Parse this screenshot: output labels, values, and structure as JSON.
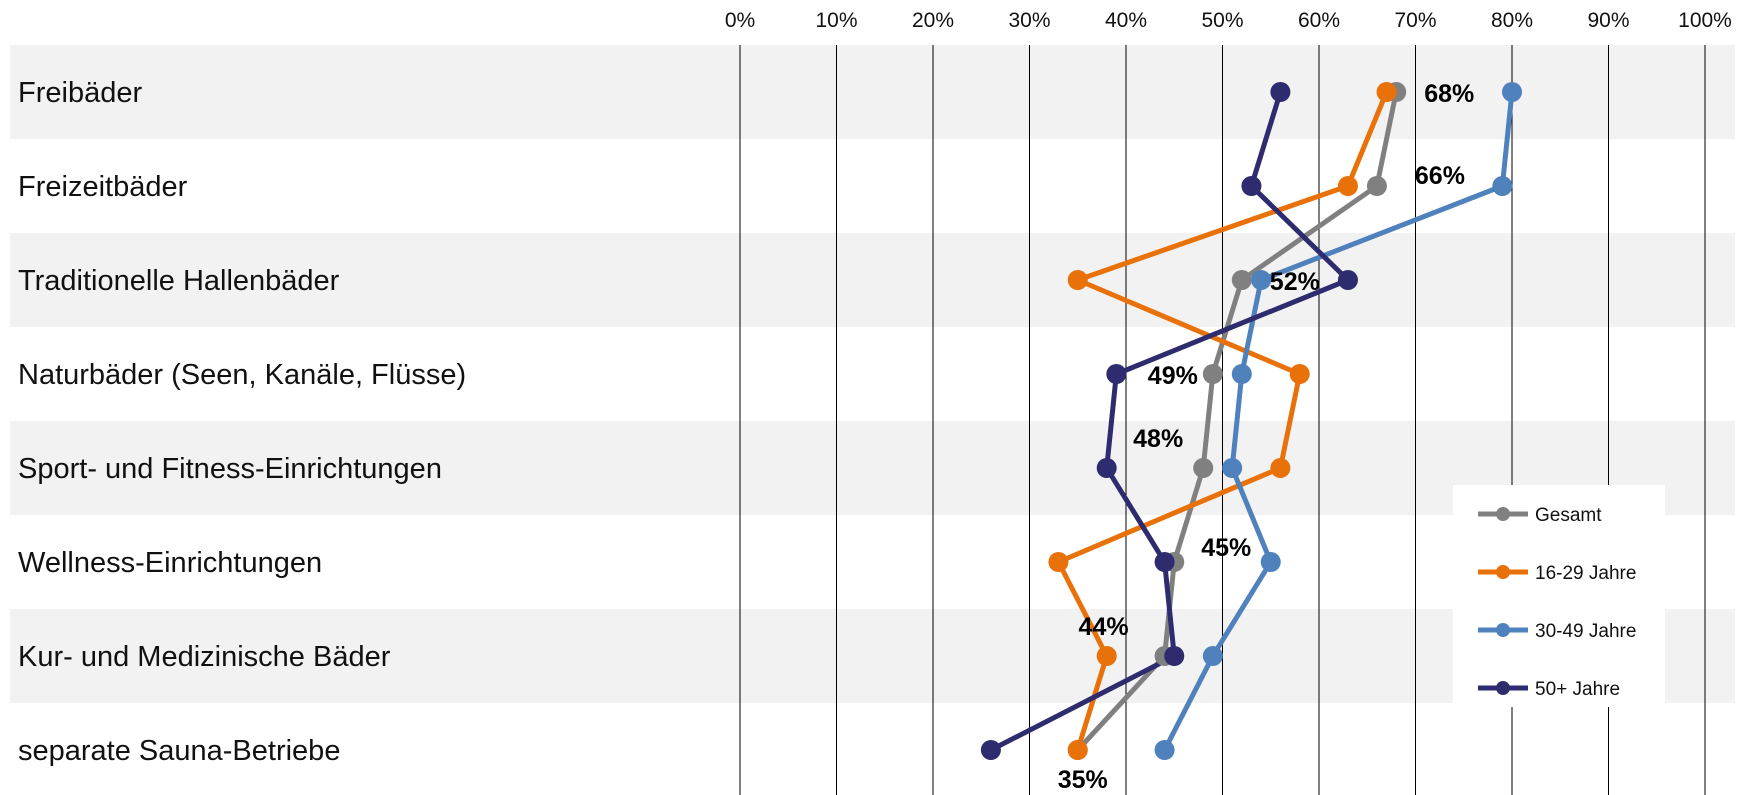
{
  "chart_data": {
    "type": "line",
    "orientation": "horizontal",
    "categories": [
      "Freibäder",
      "Freizeitbäder",
      "Traditionelle Hallenbäder",
      "Naturbäder (Seen, Kanäle, Flüsse)",
      "Sport- und Fitness-Einrichtungen",
      "Wellness-Einrichtungen",
      "Kur- und Medizinische Bäder",
      "separate Sauna-Betriebe"
    ],
    "x_ticks": [
      "0%",
      "10%",
      "20%",
      "30%",
      "40%",
      "50%",
      "60%",
      "70%",
      "80%",
      "90%",
      "100%"
    ],
    "xlim": [
      0,
      100
    ],
    "grid": true,
    "legend_position": "lower-right",
    "series": [
      {
        "name": "Gesamt",
        "color": "#808080",
        "values": [
          68,
          66,
          52,
          49,
          48,
          45,
          44,
          35
        ]
      },
      {
        "name": "16-29 Jahre",
        "color": "#E8710A",
        "values": [
          67,
          63,
          35,
          58,
          56,
          33,
          38,
          35
        ]
      },
      {
        "name": "30-49 Jahre",
        "color": "#4F81BD",
        "values": [
          80,
          79,
          54,
          52,
          51,
          55,
          49,
          44
        ]
      },
      {
        "name": "50+ Jahre",
        "color": "#2E2B6E",
        "values": [
          56,
          53,
          63,
          39,
          38,
          44,
          45,
          26
        ]
      }
    ],
    "data_labels": [
      "68%",
      "66%",
      "52%",
      "49%",
      "48%",
      "45%",
      "44%",
      "35%"
    ]
  }
}
